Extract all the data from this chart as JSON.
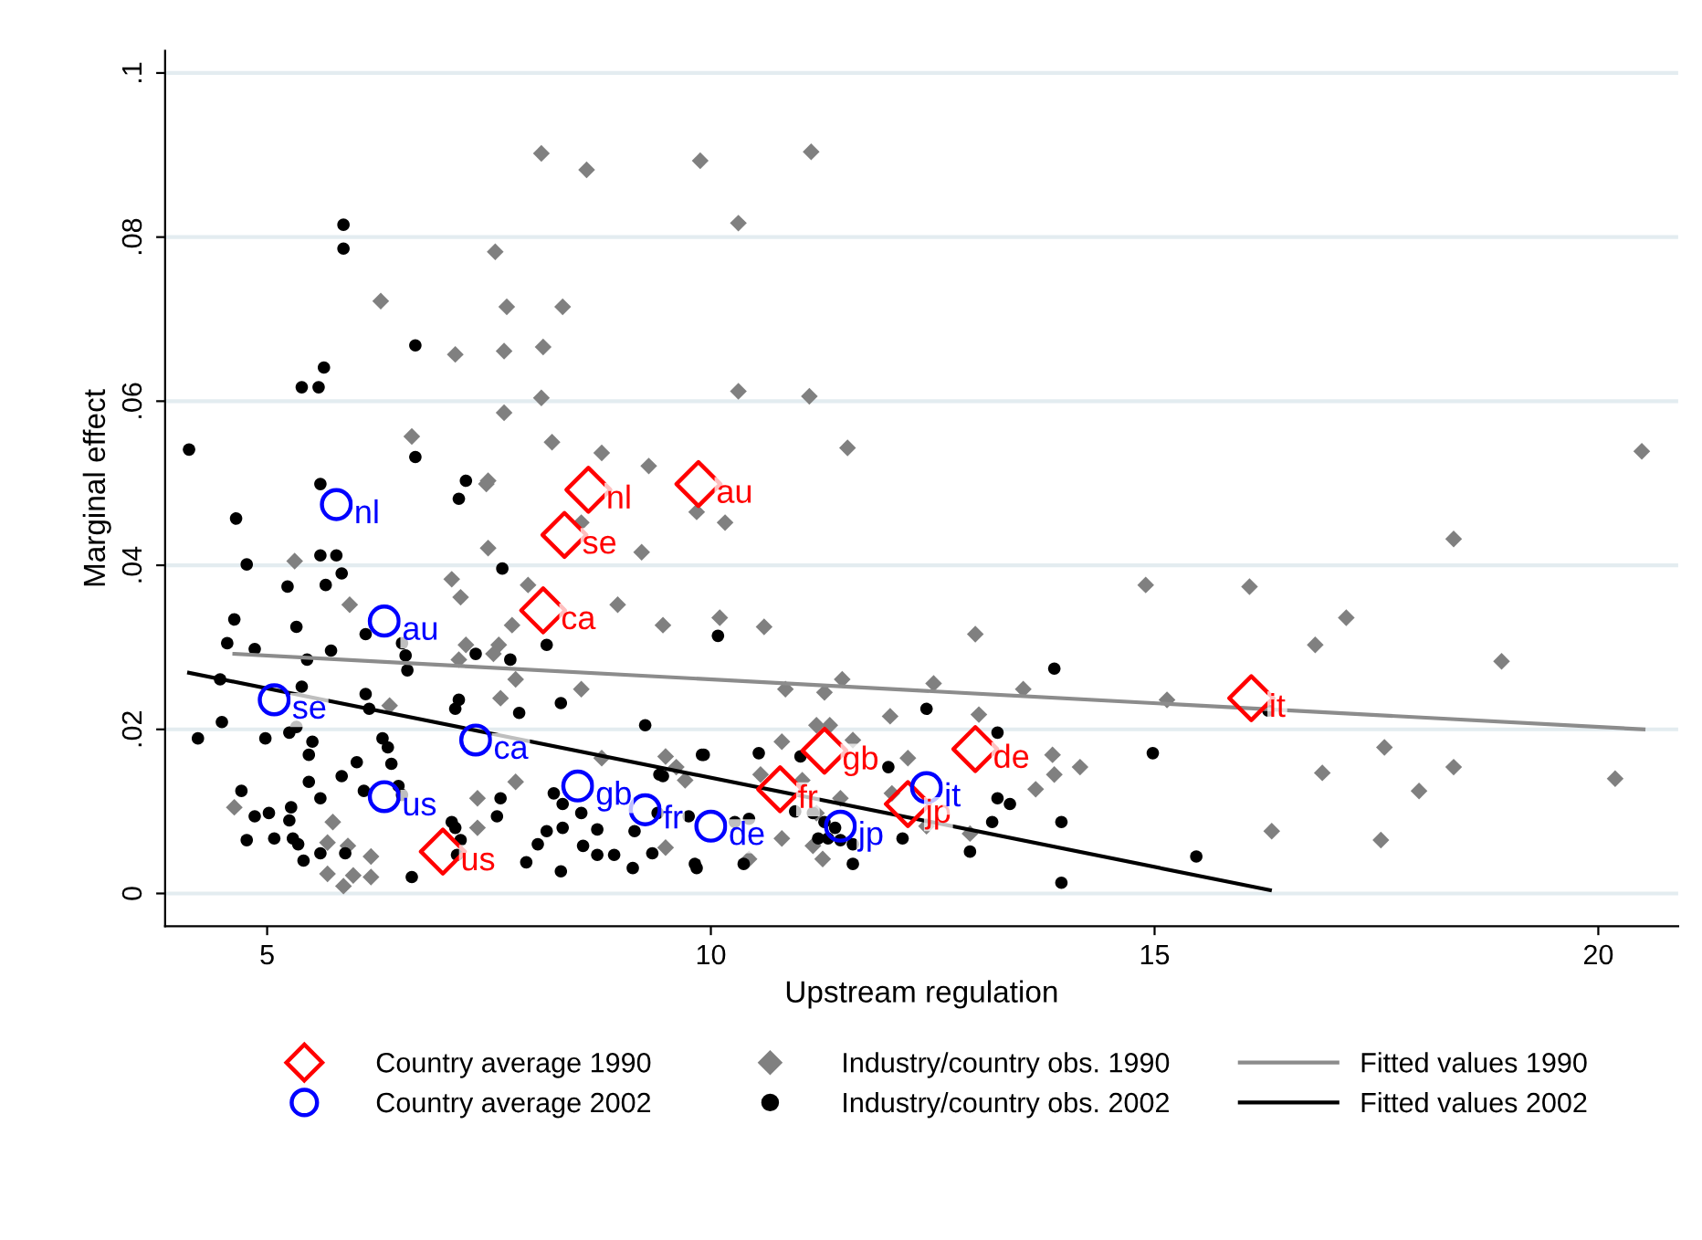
{
  "chart_data": {
    "type": "scatter",
    "xlabel": "Upstream regulation",
    "ylabel": "Marginal effect",
    "xlim": [
      3.85,
      20.9
    ],
    "ylim": [
      -0.004,
      0.1027
    ],
    "xticks": [
      5,
      10,
      15,
      20
    ],
    "yticks": [
      0,
      {
        "value": 0.02,
        "label": ".02"
      },
      {
        "value": 0.04,
        "label": ".04"
      },
      {
        "value": 0.06,
        "label": ".06"
      },
      {
        "value": 0.08,
        "label": ".08"
      },
      {
        "value": 0.1,
        "label": ".1"
      }
    ],
    "grid": "y",
    "legend": "bottom",
    "series": [
      {
        "name": "Country average 1990",
        "type": "scatter",
        "marker": "diamond",
        "color": "#ff0000",
        "x": [
          6.98,
          8.62,
          9.86,
          8.35,
          8.11,
          11.28,
          12.98,
          10.78,
          12.22,
          16.09
        ],
        "values": [
          0.0051,
          0.0492,
          0.0499,
          0.0437,
          0.0345,
          0.0174,
          0.0176,
          0.0127,
          0.0109,
          0.0238
        ],
        "value_labels": [
          "us",
          "nl",
          "au",
          "se",
          "ca",
          "gb",
          "de",
          "fr",
          "jp",
          "it"
        ]
      },
      {
        "name": "Country average 2002",
        "type": "scatter",
        "marker": "circle",
        "color": "#0000ff",
        "x": [
          5.78,
          6.32,
          5.08,
          7.35,
          6.32,
          8.5,
          9.26,
          10.0,
          11.46,
          12.43
        ],
        "values": [
          0.0474,
          0.0332,
          0.0236,
          0.0187,
          0.0118,
          0.0131,
          0.0102,
          0.0082,
          0.0082,
          0.0129
        ],
        "value_labels": [
          "nl",
          "au",
          "se",
          "ca",
          "us",
          "gb",
          "fr",
          "de",
          "jp",
          "it"
        ]
      },
      {
        "name": "Industry/country obs. 1990",
        "marker": "diamond",
        "color": "#808080",
        "x": [
          8.09,
          8.6,
          9.88,
          11.13,
          10.31,
          7.57,
          6.28,
          7.7,
          8.33,
          7.12,
          7.67,
          8.11,
          10.31,
          11.11,
          7.67,
          8.09,
          6.63,
          8.21,
          8.77,
          9.3,
          11.54,
          7.49,
          20.49,
          5.31,
          5.93,
          7.08,
          7.18,
          7.49,
          7.94,
          8.95,
          9.46,
          7.76,
          7.24,
          7.61,
          7.55,
          7.16,
          7.8,
          7.63,
          8.54,
          6.38,
          8.77,
          9.49,
          9.61,
          9.71,
          4.63,
          5.74,
          7.37,
          7.8,
          7.37,
          9.49,
          5.68,
          6.17,
          5.91,
          5.68,
          5.86,
          5.97,
          6.17,
          7.47,
          8.54,
          9.22,
          9.84,
          10.16,
          10.1,
          10.6,
          12.98,
          14.9,
          10.84,
          11.28,
          11.48,
          12.51,
          13.52,
          15.14,
          12.02,
          13.02,
          11.19,
          11.34,
          10.8,
          11.6,
          12.22,
          13.85,
          14.16,
          13.87,
          13.66,
          10.56,
          11.03,
          11.46,
          12.04,
          11.19,
          10.8,
          12.43,
          11.15,
          11.26,
          10.43,
          12.92,
          18.37,
          16.07,
          17.16,
          16.81,
          18.91,
          17.59,
          16.89,
          18.37,
          17.98,
          20.19,
          16.32,
          17.55
        ],
        "values": [
          0.0902,
          0.0882,
          0.0893,
          0.0904,
          0.0817,
          0.0782,
          0.0722,
          0.0715,
          0.0715,
          0.0657,
          0.0661,
          0.0666,
          0.0612,
          0.0606,
          0.0586,
          0.0604,
          0.0557,
          0.055,
          0.0537,
          0.0521,
          0.0543,
          0.0503,
          0.0539,
          0.0405,
          0.0352,
          0.0383,
          0.0361,
          0.0421,
          0.0376,
          0.0352,
          0.0327,
          0.0327,
          0.0303,
          0.0303,
          0.0292,
          0.0285,
          0.0261,
          0.0238,
          0.0249,
          0.0229,
          0.0165,
          0.0167,
          0.0154,
          0.0138,
          0.0105,
          0.0087,
          0.0116,
          0.0136,
          0.008,
          0.0056,
          0.0062,
          0.0045,
          0.0058,
          0.0024,
          0.0009,
          0.0022,
          0.002,
          0.0499,
          0.0452,
          0.0416,
          0.0465,
          0.0452,
          0.0336,
          0.0325,
          0.0316,
          0.0376,
          0.0249,
          0.0245,
          0.0261,
          0.0256,
          0.0249,
          0.0236,
          0.0216,
          0.0218,
          0.0205,
          0.0205,
          0.0185,
          0.0187,
          0.0165,
          0.0169,
          0.0154,
          0.0145,
          0.0127,
          0.0145,
          0.0138,
          0.0116,
          0.0122,
          0.0098,
          0.0067,
          0.0082,
          0.0058,
          0.0042,
          0.0042,
          0.0073,
          0.0432,
          0.0374,
          0.0336,
          0.0303,
          0.0283,
          0.0178,
          0.0147,
          0.0154,
          0.0125,
          0.014,
          0.0076,
          0.0065
        ]
      },
      {
        "name": "Industry/country obs. 2002",
        "marker": "circle",
        "color": "#000000",
        "x": [
          5.86,
          5.86,
          6.67,
          5.64,
          5.39,
          5.58,
          4.12,
          6.67,
          5.6,
          7.24,
          7.16,
          4.65,
          4.77,
          5.23,
          5.6,
          5.78,
          5.84,
          5.66,
          4.63,
          5.33,
          4.55,
          4.86,
          5.45,
          5.72,
          6.11,
          6.52,
          6.56,
          6.58,
          7.35,
          7.65,
          7.74,
          8.15,
          8.31,
          9.26,
          9.9,
          9.42,
          4.47,
          4.22,
          4.49,
          4.98,
          5.25,
          5.33,
          5.51,
          5.47,
          5.39,
          6.11,
          6.15,
          6.3,
          6.36,
          6.4,
          7.16,
          7.12,
          7.84,
          6.01,
          5.84,
          5.47,
          5.6,
          4.71,
          5.27,
          5.25,
          5.02,
          4.86,
          4.77,
          5.08,
          5.29,
          5.35,
          5.41,
          5.6,
          6.09,
          6.48,
          6.52,
          7.08,
          7.12,
          7.18,
          7.59,
          7.63,
          7.14,
          6.63,
          7.92,
          8.05,
          8.15,
          8.33,
          8.23,
          8.33,
          8.54,
          8.72,
          8.56,
          8.72,
          8.91,
          8.31,
          9.12,
          9.34,
          9.14,
          9.4,
          9.46,
          9.75,
          9.84,
          5.88,
          10.08,
          13.87,
          12.43,
          13.23,
          14.98,
          9.92,
          10.54,
          11.01,
          12.0,
          13.23,
          13.37,
          13.17,
          13.95,
          10.27,
          10.43,
          10.95,
          11.15,
          11.28,
          11.4,
          11.46,
          11.6,
          11.32,
          11.21,
          10.37,
          11.6,
          12.16,
          12.92,
          15.47,
          13.95,
          9.82,
          16.28
        ],
        "values": [
          0.0815,
          0.0786,
          0.0668,
          0.0641,
          0.0617,
          0.0617,
          0.0541,
          0.0532,
          0.0499,
          0.0503,
          0.0481,
          0.0457,
          0.0401,
          0.0374,
          0.0412,
          0.0412,
          0.039,
          0.0376,
          0.0334,
          0.0325,
          0.0305,
          0.0298,
          0.0285,
          0.0296,
          0.0316,
          0.0305,
          0.029,
          0.0272,
          0.0292,
          0.0396,
          0.0285,
          0.0303,
          0.0232,
          0.0205,
          0.0169,
          0.0145,
          0.0261,
          0.0189,
          0.0209,
          0.0189,
          0.0196,
          0.0203,
          0.0185,
          0.0169,
          0.0252,
          0.0243,
          0.0225,
          0.0189,
          0.0178,
          0.0158,
          0.0236,
          0.0225,
          0.022,
          0.016,
          0.0143,
          0.0136,
          0.0116,
          0.0125,
          0.0105,
          0.0089,
          0.0098,
          0.0094,
          0.0065,
          0.0067,
          0.0067,
          0.006,
          0.004,
          0.0049,
          0.0125,
          0.0131,
          0.012,
          0.0087,
          0.008,
          0.0065,
          0.0094,
          0.0116,
          0.0047,
          0.002,
          0.0038,
          0.006,
          0.0076,
          0.008,
          0.0122,
          0.0109,
          0.0098,
          0.0078,
          0.0058,
          0.0047,
          0.0047,
          0.0027,
          0.0031,
          0.0049,
          0.0076,
          0.0098,
          0.0143,
          0.0094,
          0.0031,
          0.0049,
          0.0314,
          0.0274,
          0.0225,
          0.0196,
          0.0171,
          0.0169,
          0.0171,
          0.0167,
          0.0154,
          0.0116,
          0.0109,
          0.0087,
          0.0087,
          0.0087,
          0.0091,
          0.01,
          0.0098,
          0.0087,
          0.008,
          0.0065,
          0.006,
          0.0067,
          0.0067,
          0.0036,
          0.0036,
          0.0067,
          0.0051,
          0.0045,
          0.0013,
          0.0036,
          0.0223
        ]
      },
      {
        "name": "Fitted values 1990",
        "type": "line",
        "marker": "none",
        "line_style": "solid",
        "color": "#8c8c8c",
        "x": [
          4.63,
          20.51
        ],
        "values": [
          0.0292,
          0.02
        ]
      },
      {
        "name": "Fitted values 2002",
        "type": "line",
        "marker": "none",
        "line_style": "solid",
        "color": "#000000",
        "x": [
          4.12,
          16.3
        ],
        "values": [
          0.0269,
          0.0004
        ]
      }
    ]
  }
}
